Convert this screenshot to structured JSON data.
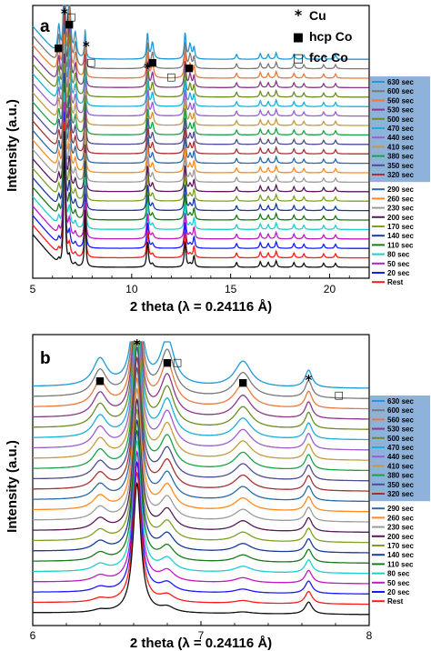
{
  "chart_data": [
    {
      "type": "line",
      "panel_label": "a",
      "xlabel": "2 theta (λ = 0.24116 Å)",
      "ylabel": "Intensity (a.u.)",
      "xlim": [
        5,
        22
      ],
      "x_ticks": [
        "5",
        "10",
        "15",
        "20"
      ],
      "legend": {
        "placement": "right",
        "highlighted_entries": [
          "630 sec",
          "600 sec",
          "560 sec",
          "530 sec",
          "500 sec",
          "470 sec",
          "440 sec",
          "410 sec",
          "380 sec",
          "350 sec",
          "320 sec"
        ],
        "entries": [
          "290 sec",
          "260 sec",
          "230 sec",
          "200 sec",
          "170 sec",
          "140 sec",
          "110 sec",
          "80 sec",
          "50 sec",
          "20 sec",
          "Rest"
        ]
      },
      "marker_legend": [
        {
          "symbol": "*",
          "label": "Cu"
        },
        {
          "symbol": "■",
          "label": "hcp Co"
        },
        {
          "symbol": "□",
          "label": "fcc Co"
        }
      ],
      "peak_markers": [
        {
          "x": 6.3,
          "symbol": "■"
        },
        {
          "x": 6.6,
          "symbol": "*"
        },
        {
          "x": 6.85,
          "symbol": "■"
        },
        {
          "x": 6.95,
          "symbol": "□"
        },
        {
          "x": 7.7,
          "symbol": "*"
        },
        {
          "x": 7.95,
          "symbol": "□"
        },
        {
          "x": 10.8,
          "symbol": "*"
        },
        {
          "x": 11.05,
          "symbol": "■"
        },
        {
          "x": 12.0,
          "symbol": "□"
        },
        {
          "x": 12.9,
          "symbol": "■"
        }
      ]
    },
    {
      "type": "line",
      "panel_label": "b",
      "xlabel": "2 theta (λ = 0.24116 Å)",
      "ylabel": "Intensity (a.u.)",
      "xlim": [
        6,
        8
      ],
      "x_ticks": [
        "6",
        "7",
        "8"
      ],
      "legend": {
        "placement": "right",
        "highlighted_entries": [
          "630 sec",
          "600 sec",
          "560 sec",
          "530 sec",
          "500 sec",
          "470 sec",
          "440 sec",
          "410 sec",
          "380 sec",
          "350 sec",
          "320 sec"
        ],
        "entries": [
          "290 sec",
          "260 sec",
          "230 sec",
          "200 sec",
          "170 sec",
          "140 sec",
          "110 sec",
          "80 sec",
          "50 sec",
          "20 sec",
          "Rest"
        ]
      },
      "peak_markers": [
        {
          "x": 6.4,
          "symbol": "■"
        },
        {
          "x": 6.62,
          "symbol": "*"
        },
        {
          "x": 6.8,
          "symbol": "■"
        },
        {
          "x": 6.86,
          "symbol": "□"
        },
        {
          "x": 7.25,
          "symbol": "■"
        },
        {
          "x": 7.64,
          "symbol": "*"
        },
        {
          "x": 7.82,
          "symbol": "□"
        }
      ]
    }
  ],
  "series_colors": [
    "#1e9ad6",
    "#7a7a7a",
    "#e87a3c",
    "#8b3a8b",
    "#6b8e23",
    "#1ab0d8",
    "#9a5fcf",
    "#c59b3f",
    "#1aa34a",
    "#4d4d8f",
    "#a83232",
    "#2a6aa8",
    "#ff8a1e",
    "#9c9c9c",
    "#5a1a5a",
    "#7fa020",
    "#1a3aa0",
    "#1a7a1a",
    "#1ad0d0",
    "#c01ac0",
    "#1a1aff",
    "#ff1a1a",
    "#111111"
  ]
}
